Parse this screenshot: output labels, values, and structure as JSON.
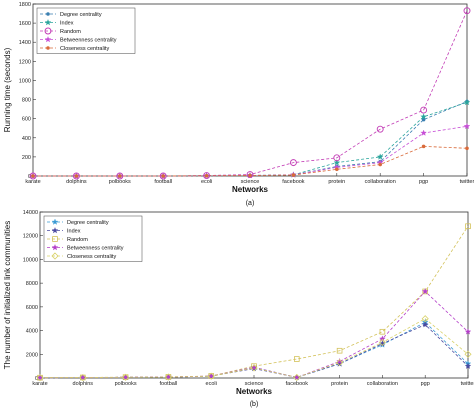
{
  "chart_data": [
    {
      "type": "line",
      "caption": "(a)",
      "xlabel": "Networks",
      "ylabel": "Running time (seconds)",
      "ylim": [
        0,
        1800
      ],
      "yticks": [
        "0",
        "200",
        "400",
        "600",
        "800",
        "1000",
        "1200",
        "1400",
        "1600",
        "1800"
      ],
      "categories": [
        "karate",
        "dolphins",
        "polbooks",
        "football",
        "ecoli",
        "science",
        "facebook",
        "protein",
        "collaboration",
        "pgp",
        "twitter"
      ],
      "legend_position": "top-left",
      "series": [
        {
          "name": "Degree centrality",
          "color": "#3a7fb0",
          "marker": "dot",
          "values": [
            0,
            0,
            0,
            0,
            2,
            5,
            10,
            100,
            150,
            590,
            780
          ]
        },
        {
          "name": "Index",
          "color": "#2aa59c",
          "marker": "star",
          "values": [
            0,
            0,
            0,
            0,
            3,
            6,
            12,
            140,
            200,
            620,
            770
          ]
        },
        {
          "name": "Random",
          "color": "#c23bb5",
          "marker": "circle",
          "values": [
            0,
            0,
            0,
            0,
            5,
            15,
            140,
            190,
            490,
            690,
            1730
          ]
        },
        {
          "name": "Betweenness centrality",
          "color": "#c74fd6",
          "marker": "star",
          "values": [
            0,
            0,
            0,
            0,
            3,
            6,
            12,
            90,
            140,
            450,
            520
          ]
        },
        {
          "name": "Closeness centrality",
          "color": "#d96a3a",
          "marker": "dot",
          "values": [
            0,
            0,
            0,
            0,
            2,
            5,
            10,
            70,
            120,
            310,
            290
          ]
        }
      ]
    },
    {
      "type": "line",
      "caption": "(b)",
      "xlabel": "Networks",
      "ylabel": "The number of initialized link communities",
      "ylim": [
        0,
        14000
      ],
      "yticks": [
        "0",
        "2000",
        "4000",
        "6000",
        "8000",
        "10000",
        "12000",
        "14000"
      ],
      "categories": [
        "karate",
        "dolphins",
        "polbooks",
        "football",
        "ecoli",
        "science",
        "facebook",
        "protein",
        "collaboration",
        "pgp",
        "twitter"
      ],
      "legend_position": "top-left",
      "series": [
        {
          "name": "Degree centrality",
          "color": "#3a9ad4",
          "marker": "star",
          "values": [
            20,
            40,
            60,
            80,
            150,
            900,
            50,
            1200,
            2800,
            4700,
            1200
          ]
        },
        {
          "name": "Index",
          "color": "#4a4aa0",
          "marker": "star",
          "values": [
            20,
            40,
            60,
            80,
            150,
            800,
            50,
            1200,
            2900,
            4500,
            1000
          ]
        },
        {
          "name": "Random",
          "color": "#d3c25a",
          "marker": "square",
          "values": [
            25,
            45,
            70,
            90,
            170,
            1000,
            1600,
            2300,
            3900,
            7300,
            12800
          ]
        },
        {
          "name": "Betweenness centrality",
          "color": "#b43fc9",
          "marker": "star",
          "values": [
            20,
            40,
            60,
            90,
            160,
            900,
            50,
            1400,
            3300,
            7300,
            3900
          ]
        },
        {
          "name": "Closeness centrality",
          "color": "#d9d26a",
          "marker": "diamond",
          "values": [
            20,
            40,
            60,
            80,
            150,
            850,
            50,
            1300,
            3000,
            5000,
            2000
          ]
        }
      ]
    }
  ]
}
